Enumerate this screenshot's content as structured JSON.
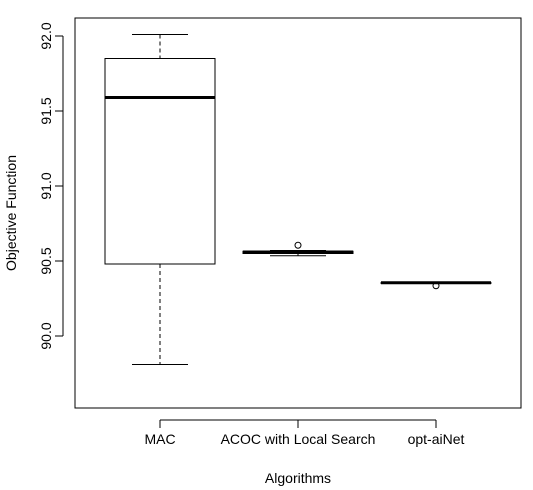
{
  "chart_data": {
    "type": "boxplot",
    "title": "",
    "xlabel": "Algorithms",
    "ylabel": "Objective Function",
    "ylim": [
      89.76,
      92.1
    ],
    "yticks": [
      90.0,
      90.5,
      91.0,
      91.5,
      92.0
    ],
    "ytick_labels": [
      "90.0",
      "90.5",
      "91.0",
      "91.5",
      "92.0"
    ],
    "categories": [
      "MAC",
      "ACOC with Local Search",
      "opt-aiNet"
    ],
    "boxes": [
      {
        "name": "MAC",
        "whisker_low": 89.81,
        "q1": 90.48,
        "median": 91.59,
        "q3": 91.85,
        "whisker_high": 92.01,
        "outliers": []
      },
      {
        "name": "ACOC with Local Search",
        "whisker_low": 90.535,
        "q1": 90.55,
        "median": 90.56,
        "q3": 90.565,
        "whisker_high": 90.57,
        "outliers": [
          90.605
        ]
      },
      {
        "name": "opt-aiNet",
        "whisker_low": 90.355,
        "q1": 90.355,
        "median": 90.355,
        "q3": 90.355,
        "whisker_high": 90.355,
        "outliers": [
          90.335
        ]
      }
    ],
    "grid": false,
    "legend": "none"
  }
}
